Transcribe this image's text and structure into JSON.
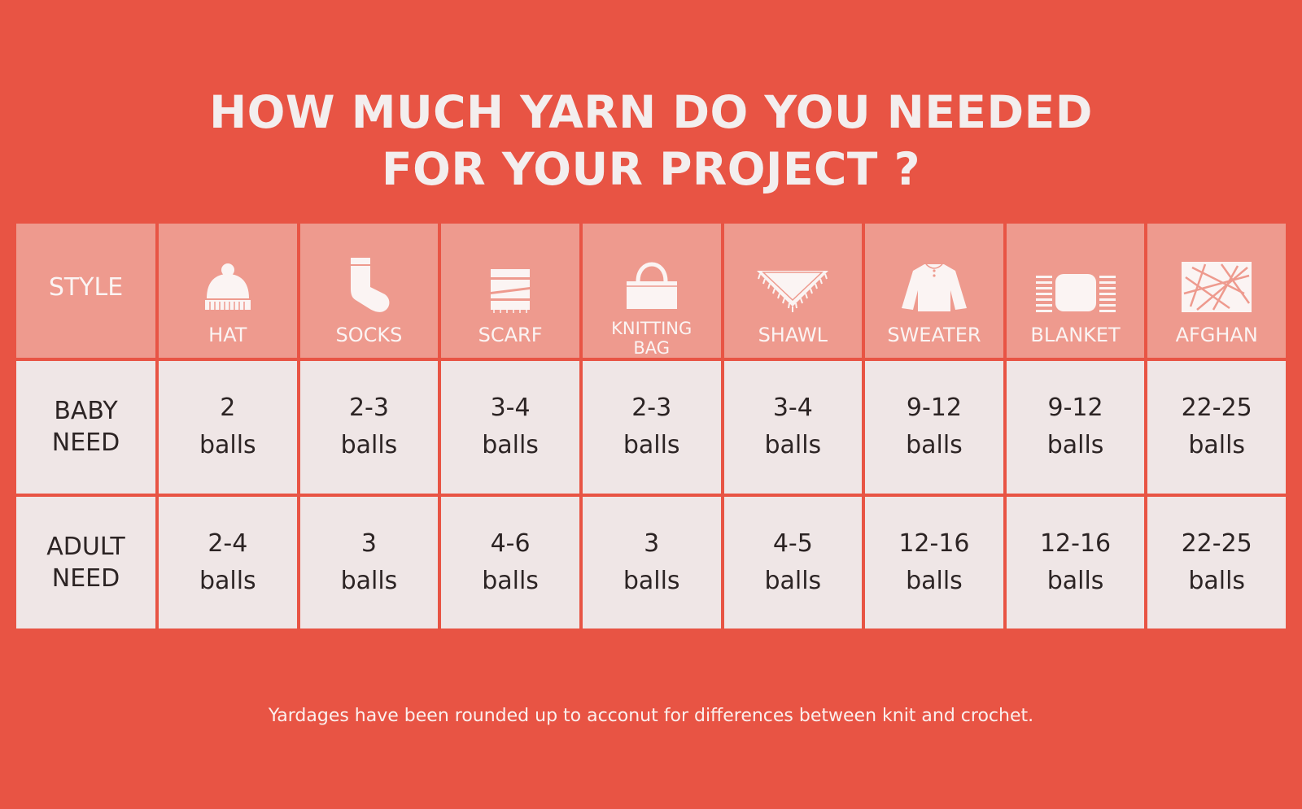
{
  "title": {
    "line1": "HOW MUCH YARN DO YOU NEEDED",
    "line2": "FOR YOUR PROJECT ?"
  },
  "table": {
    "style_header": "STYLE",
    "columns": [
      {
        "label": "HAT",
        "icon": "hat-icon"
      },
      {
        "label": "SOCKS",
        "icon": "sock-icon"
      },
      {
        "label": "SCARF",
        "icon": "scarf-icon"
      },
      {
        "label_line1": "KNITTING",
        "label_line2": "BAG",
        "icon": "bag-icon"
      },
      {
        "label": "SHAWL",
        "icon": "shawl-icon"
      },
      {
        "label": "SWEATER",
        "icon": "sweater-icon"
      },
      {
        "label": "BLANKET",
        "icon": "blanket-icon"
      },
      {
        "label": "AFGHAN",
        "icon": "afghan-icon"
      }
    ],
    "rows": [
      {
        "label_line1": "BABY",
        "label_line2": "NEED",
        "cells": [
          {
            "amount": "2",
            "unit": "balls"
          },
          {
            "amount": "2-3",
            "unit": "balls"
          },
          {
            "amount": "3-4",
            "unit": "balls"
          },
          {
            "amount": "2-3",
            "unit": "balls"
          },
          {
            "amount": "3-4",
            "unit": "balls"
          },
          {
            "amount": "9-12",
            "unit": "balls"
          },
          {
            "amount": "9-12",
            "unit": "balls"
          },
          {
            "amount": "22-25",
            "unit": "balls"
          }
        ]
      },
      {
        "label_line1": "ADULT",
        "label_line2": "NEED",
        "cells": [
          {
            "amount": "2-4",
            "unit": "balls"
          },
          {
            "amount": "3",
            "unit": "balls"
          },
          {
            "amount": "4-6",
            "unit": "balls"
          },
          {
            "amount": "3",
            "unit": "balls"
          },
          {
            "amount": "4-5",
            "unit": "balls"
          },
          {
            "amount": "12-16",
            "unit": "balls"
          },
          {
            "amount": "12-16",
            "unit": "balls"
          },
          {
            "amount": "22-25",
            "unit": "balls"
          }
        ]
      }
    ]
  },
  "footnote": "Yardages have been rounded up to acconut for differences between knit and crochet.",
  "colors": {
    "background": "#e85444",
    "header_cell": "#ee9a8e",
    "body_cell": "#efe6e6",
    "text_dark": "#2c2424",
    "text_light": "#fbf4f3"
  }
}
